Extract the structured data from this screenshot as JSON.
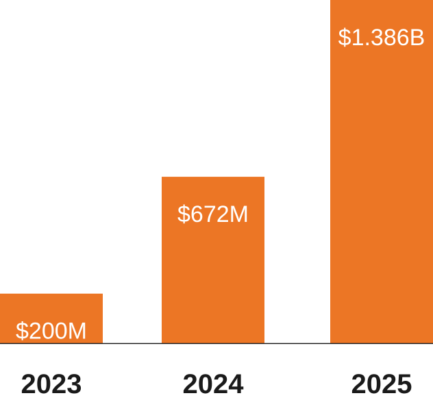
{
  "chart_data": {
    "type": "bar",
    "categories": [
      "2023",
      "2024",
      "2025"
    ],
    "values": [
      200,
      672,
      1386
    ],
    "value_labels": [
      "$200M",
      "$672M",
      "$1.386B"
    ],
    "unit": "USD millions",
    "title": "",
    "xlabel": "",
    "ylabel": "",
    "ylim": [
      0,
      1386
    ],
    "grid": false,
    "legend": "none"
  },
  "colors": {
    "bar": "#ec7625",
    "value_label": "#ffffff",
    "category_label": "#1a1a1a",
    "baseline": "#1a1a1a"
  }
}
